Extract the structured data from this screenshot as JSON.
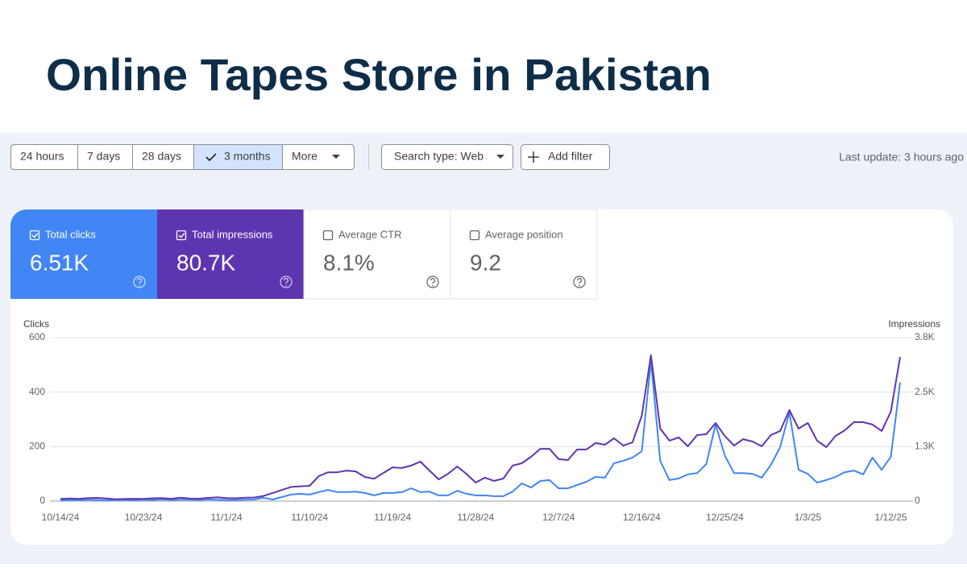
{
  "header": {
    "title": "Online Tapes Store in Pakistan"
  },
  "toolbar": {
    "ranges": [
      "24 hours",
      "7 days",
      "28 days",
      "3 months",
      "More"
    ],
    "search_type": "Search type: Web",
    "add_filter": "Add filter",
    "last_update": "Last update: 3 hours ago"
  },
  "metrics": [
    {
      "label": "Total clicks",
      "value": "6.51K",
      "checked": true,
      "color": "#4285f4"
    },
    {
      "label": "Total impressions",
      "value": "80.7K",
      "checked": true,
      "color": "#5e35b1"
    },
    {
      "label": "Average CTR",
      "value": "8.1%",
      "checked": false
    },
    {
      "label": "Average position",
      "value": "9.2",
      "checked": false
    }
  ],
  "chart_data": {
    "type": "line",
    "categories": [
      "10/14/24",
      null,
      null,
      null,
      null,
      null,
      null,
      null,
      null,
      "10/23/24",
      null,
      null,
      null,
      null,
      null,
      null,
      null,
      null,
      "11/1/24",
      null,
      null,
      null,
      null,
      null,
      null,
      null,
      null,
      "11/10/24",
      null,
      null,
      null,
      null,
      null,
      null,
      null,
      null,
      "11/19/24",
      null,
      null,
      null,
      null,
      null,
      null,
      null,
      null,
      "11/28/24",
      null,
      null,
      null,
      null,
      null,
      null,
      null,
      null,
      "12/7/24",
      null,
      null,
      null,
      null,
      null,
      null,
      null,
      null,
      "12/16/24",
      null,
      null,
      null,
      null,
      null,
      null,
      null,
      null,
      "12/25/24",
      null,
      null,
      null,
      null,
      null,
      null,
      null,
      null,
      "1/3/25",
      null,
      null,
      null,
      null,
      null,
      null,
      null,
      null,
      "1/12/25",
      null
    ],
    "series": [
      {
        "name": "Clicks",
        "color": "#4285f4",
        "values": [
          3,
          4,
          4,
          5,
          4,
          3,
          4,
          4,
          3,
          5,
          4,
          6,
          4,
          5,
          5,
          4,
          6,
          5,
          4,
          4,
          5,
          6,
          12,
          6,
          15,
          24,
          27,
          24,
          33,
          41,
          33,
          33,
          35,
          30,
          21,
          30,
          30,
          33,
          47,
          33,
          35,
          21,
          21,
          38,
          27,
          21,
          21,
          18,
          18,
          35,
          65,
          50,
          74,
          77,
          47,
          47,
          59,
          71,
          89,
          86,
          139,
          148,
          160,
          183,
          514,
          148,
          77,
          83,
          98,
          103,
          136,
          281,
          168,
          103,
          103,
          100,
          86,
          133,
          198,
          325,
          115,
          100,
          68,
          77,
          89,
          106,
          112,
          98,
          160,
          115,
          163,
          435
        ]
      },
      {
        "name": "Impressions",
        "color": "#5e35b1",
        "axis": "y2",
        "values": [
          50,
          60,
          55,
          70,
          75,
          60,
          45,
          50,
          55,
          50,
          65,
          70,
          55,
          80,
          60,
          55,
          75,
          90,
          70,
          65,
          80,
          85,
          120,
          190,
          260,
          330,
          345,
          355,
          580,
          670,
          670,
          710,
          690,
          560,
          520,
          655,
          785,
          770,
          825,
          920,
          710,
          505,
          635,
          805,
          635,
          430,
          545,
          470,
          525,
          825,
          880,
          1030,
          1215,
          1215,
          975,
          955,
          1200,
          1200,
          1350,
          1310,
          1460,
          1290,
          1365,
          1985,
          3390,
          1685,
          1405,
          1480,
          1275,
          1535,
          1555,
          1815,
          1515,
          1290,
          1440,
          1385,
          1275,
          1535,
          1630,
          2115,
          1685,
          1815,
          1405,
          1255,
          1515,
          1645,
          1835,
          1835,
          1780,
          1630,
          2080,
          3350
        ]
      }
    ],
    "ylim": [
      0,
      600
    ],
    "yticks": [
      0,
      200,
      400,
      600
    ],
    "y2lim": [
      0,
      3800
    ],
    "y2ticks": [
      0,
      {
        "value": 1267,
        "label": "1.3K"
      },
      {
        "value": 2533,
        "label": "2.5K"
      },
      {
        "value": 3800,
        "label": "3.8K"
      }
    ],
    "grid": true
  }
}
